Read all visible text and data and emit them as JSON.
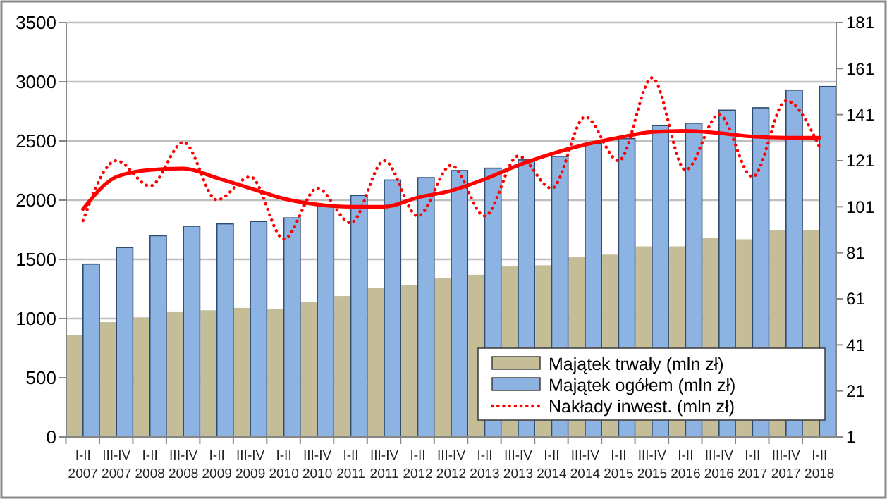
{
  "chart_data": {
    "type": "bar",
    "categories": [
      "I-II 2007",
      "III-IV 2007",
      "I-II 2008",
      "III-IV 2008",
      "I-II 2009",
      "III-IV 2009",
      "I-II 2010",
      "III-IV 2010",
      "I-II 2011",
      "III-IV 2011",
      "I-II 2012",
      "III-IV 2012",
      "I-II 2013",
      "III-IV 2013",
      "I-II 2014",
      "III-IV 2014",
      "I-II 2015",
      "III-IV 2015",
      "I-II 2016",
      "III-IV 2016",
      "I-II 2017",
      "III-IV 2017",
      "I-II 2018"
    ],
    "series": [
      {
        "name": "Majątek trwały (mln zł)",
        "color": "#c4bd97",
        "values": [
          860,
          970,
          1010,
          1060,
          1070,
          1090,
          1080,
          1140,
          1190,
          1260,
          1280,
          1340,
          1370,
          1440,
          1450,
          1520,
          1540,
          1610,
          1610,
          1680,
          1670,
          1750,
          1750
        ]
      },
      {
        "name": "Majątek ogółem (mln zł)",
        "color": "#8db3e2",
        "values": [
          1460,
          1600,
          1700,
          1780,
          1800,
          1820,
          1850,
          1950,
          2040,
          2170,
          2190,
          2250,
          2270,
          2340,
          2370,
          2480,
          2520,
          2630,
          2650,
          2760,
          2780,
          2930,
          2960
        ]
      },
      {
        "name": "Nakłady inwest. (mln zł)",
        "type": "line",
        "axis": "y2",
        "line_style": "dotted",
        "color": "#ff0000",
        "values": [
          95,
          121,
          110,
          129,
          104,
          114,
          87,
          109,
          94,
          121,
          97,
          119,
          97,
          123,
          109,
          140,
          121,
          157,
          117,
          141,
          114,
          147,
          127
        ]
      },
      {
        "type": "line",
        "axis": "y2",
        "line_style": "solid",
        "color": "#ff0000",
        "values": [
          100,
          114,
          117,
          117.6,
          113.5,
          109,
          104.5,
          102,
          101,
          101,
          105,
          108,
          113,
          119,
          124,
          128,
          131,
          133.5,
          134,
          133,
          131.5,
          131,
          131
        ]
      }
    ],
    "ylim": [
      0,
      3500
    ],
    "yticks": [
      0,
      500,
      1000,
      1500,
      2000,
      2500,
      3000,
      3500
    ],
    "y2lim": [
      1,
      181
    ],
    "y2ticks": [
      1,
      21,
      41,
      61,
      81,
      101,
      121,
      141,
      161,
      181
    ],
    "grid": "y",
    "legend": "bottom right",
    "marker": "none"
  }
}
